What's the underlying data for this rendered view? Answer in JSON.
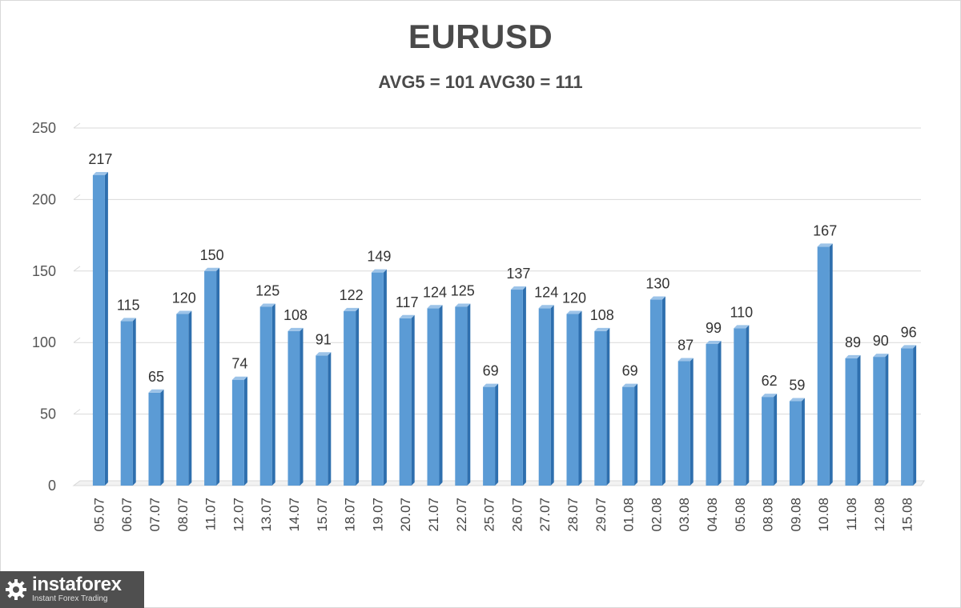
{
  "chart_data": {
    "type": "bar",
    "title": "EURUSD",
    "subtitle": "AVG5 = 101 AVG30 = 111",
    "categories": [
      "05.07",
      "06.07",
      "07.07",
      "08.07",
      "11.07",
      "12.07",
      "13.07",
      "14.07",
      "15.07",
      "18.07",
      "19.07",
      "20.07",
      "21.07",
      "22.07",
      "25.07",
      "26.07",
      "27.07",
      "28.07",
      "29.07",
      "01.08",
      "02.08",
      "03.08",
      "04.08",
      "05.08",
      "08.08",
      "09.08",
      "10.08",
      "11.08",
      "12.08",
      "15.08"
    ],
    "values": [
      217,
      115,
      65,
      120,
      150,
      74,
      125,
      108,
      91,
      122,
      149,
      117,
      124,
      125,
      69,
      137,
      124,
      120,
      108,
      69,
      130,
      87,
      99,
      110,
      62,
      59,
      167,
      89,
      90,
      96
    ],
    "ylim": [
      0,
      250
    ],
    "yticks": [
      0,
      50,
      100,
      150,
      200,
      250
    ],
    "grid": true,
    "bar_color": "#5b9bd5",
    "xlabel": "",
    "ylabel": ""
  },
  "logo": {
    "name": "instaforex",
    "tagline": "Instant Forex Trading"
  }
}
